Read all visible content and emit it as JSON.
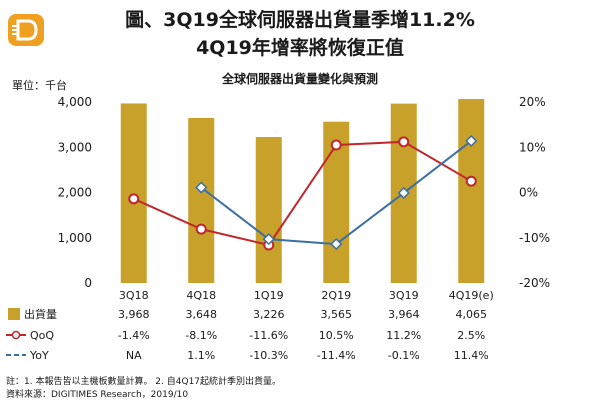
{
  "title_line1": "圖、3Q19全球伺服器出貨量季增11.2%",
  "title_line2": "4Q19年增率將恢復正值",
  "notes": {
    "line1": "註：1. 本報告皆以主機板數量計算。 2. 自4Q17起統計季別出貨量。",
    "line2": "資料來源：DIGITIMES Research，2019/10"
  },
  "colors": {
    "shipment": "#c8a12a",
    "qoq": "#c0272d",
    "yoy": "#3b6fa3",
    "logo": "#f0a020"
  },
  "logo_icon": "digitimes-logo-icon",
  "chart_data": {
    "type": "bar",
    "title": "全球伺服器出貨量變化與預測",
    "ylabel": "單位：千台",
    "categories": [
      "3Q18",
      "4Q18",
      "1Q19",
      "2Q19",
      "3Q19",
      "4Q19(e)"
    ],
    "ylim": [
      0,
      4000
    ],
    "y_ticks": [
      "0",
      "1,000",
      "2,000",
      "3,000",
      "4,000"
    ],
    "y2lim": [
      -20,
      20
    ],
    "y2_ticks": [
      "-20%",
      "-10%",
      "0%",
      "10%",
      "20%"
    ],
    "grid": false,
    "series": [
      {
        "name": "出貨量",
        "type": "bar",
        "axis": "left",
        "values": [
          3968,
          3648,
          3226,
          3565,
          3964,
          4065
        ],
        "labels": [
          "3,968",
          "3,648",
          "3,226",
          "3,565",
          "3,964",
          "4,065"
        ]
      },
      {
        "name": "QoQ",
        "type": "line",
        "axis": "right",
        "values": [
          -1.4,
          -8.1,
          -11.6,
          10.5,
          11.2,
          2.5
        ],
        "labels": [
          "-1.4%",
          "-8.1%",
          "-11.6%",
          "10.5%",
          "11.2%",
          "2.5%"
        ]
      },
      {
        "name": "YoY",
        "type": "line",
        "axis": "right",
        "values": [
          null,
          1.1,
          -10.3,
          -11.4,
          -0.1,
          11.4
        ],
        "labels": [
          "NA",
          "1.1%",
          "-10.3%",
          "-11.4%",
          "-0.1%",
          "11.4%"
        ]
      }
    ]
  }
}
